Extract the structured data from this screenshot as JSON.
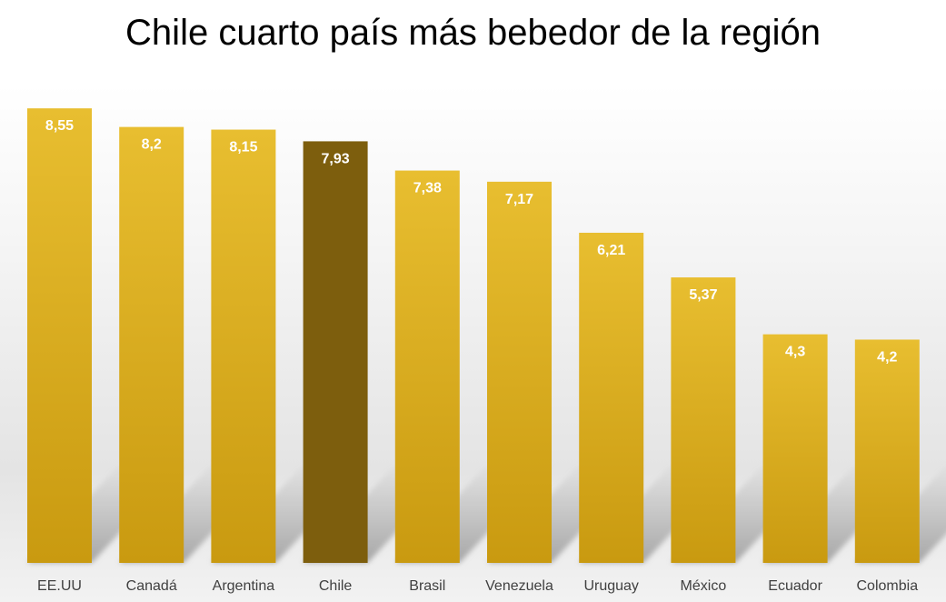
{
  "chart_data": {
    "type": "bar",
    "title": "Chile cuarto país más bebedor de la región",
    "xlabel": "",
    "ylabel": "",
    "ylim": [
      0,
      9.1
    ],
    "grid": false,
    "legend": "none",
    "categories": [
      "EE.UU",
      "Canadá",
      "Argentina",
      "Chile",
      "Brasil",
      "Venezuela",
      "Uruguay",
      "México",
      "Ecuador",
      "Colombia"
    ],
    "values": [
      8.55,
      8.2,
      8.15,
      7.93,
      7.38,
      7.17,
      6.21,
      5.37,
      4.3,
      4.2
    ],
    "value_labels": [
      "8,55",
      "8,2",
      "8,15",
      "7,93",
      "7,38",
      "7,17",
      "6,21",
      "5,37",
      "4,3",
      "4,2"
    ],
    "highlight_category": "Chile",
    "colors": {
      "bar_top": "#e8be30",
      "bar_bottom": "#c99a10",
      "highlight": "#7d5e0d",
      "value_label": "#ffffff",
      "category_label": "#404040",
      "shadow": "#9a9a9a"
    }
  }
}
